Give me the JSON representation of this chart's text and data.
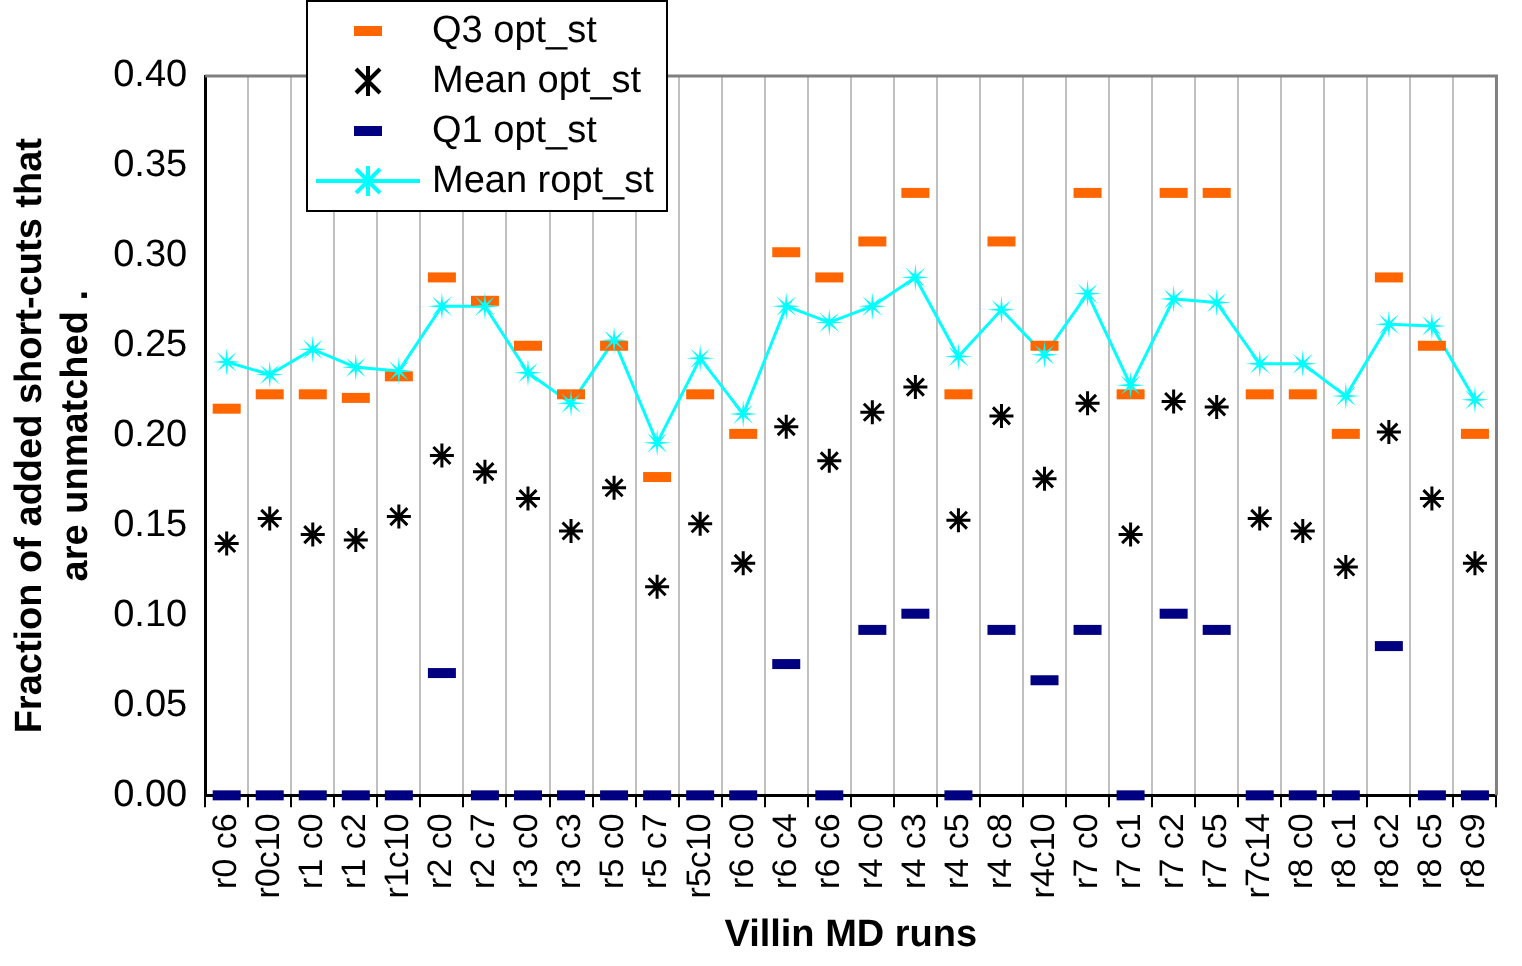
{
  "chart_data": {
    "type": "line",
    "xlabel": "Villin MD runs",
    "ylabel": "Fraction of added short-cuts that\nare unmatched .",
    "categories": [
      "r0 c6",
      "r0c10",
      "r1 c0",
      "r1 c2",
      "r1c10",
      "r2 c0",
      "r2 c7",
      "r3 c0",
      "r3 c3",
      "r5 c0",
      "r5 c7",
      "r5c10",
      "r6 c0",
      "r6 c4",
      "r6 c6",
      "r4 c0",
      "r4 c3",
      "r4 c5",
      "r4 c8",
      "r4c10",
      "r7 c0",
      "r7 c1",
      "r7 c2",
      "r7 c5",
      "r7c14",
      "r8 c0",
      "r8 c1",
      "r8 c2",
      "r8 c5",
      "r8 c9"
    ],
    "series": [
      {
        "name": "Q3 opt_st",
        "type": "scatter",
        "marker": "square",
        "color": "#ff6600",
        "values": [
          0.215,
          0.223,
          0.223,
          0.221,
          0.233,
          0.288,
          0.275,
          0.25,
          0.223,
          0.25,
          0.177,
          0.223,
          0.201,
          0.302,
          0.288,
          0.308,
          0.335,
          0.223,
          0.308,
          0.25,
          0.335,
          0.223,
          0.335,
          0.335,
          0.223,
          0.223,
          0.201,
          0.288,
          0.25,
          0.201
        ]
      },
      {
        "name": "Mean opt_st",
        "type": "scatter",
        "marker": "cross",
        "color": "#000000",
        "values": [
          0.14,
          0.154,
          0.145,
          0.142,
          0.155,
          0.189,
          0.18,
          0.165,
          0.147,
          0.171,
          0.116,
          0.151,
          0.129,
          0.205,
          0.186,
          0.213,
          0.227,
          0.153,
          0.211,
          0.176,
          0.218,
          0.145,
          0.219,
          0.216,
          0.154,
          0.147,
          0.127,
          0.202,
          0.165,
          0.129
        ]
      },
      {
        "name": "Q1 opt_st",
        "type": "scatter",
        "marker": "square",
        "color": "#000080",
        "values": [
          0,
          0,
          0,
          0,
          0,
          0.068,
          0,
          0,
          0,
          0,
          0,
          0,
          0,
          0.073,
          0,
          0.092,
          0.101,
          0,
          0.092,
          0.064,
          0.092,
          0,
          0.101,
          0.092,
          0,
          0,
          0,
          0.083,
          0,
          0
        ]
      },
      {
        "name": "Mean ropt_st",
        "type": "line",
        "marker": "star",
        "line_style": "solid",
        "color": "#00ffff",
        "values": [
          0.241,
          0.234,
          0.248,
          0.238,
          0.236,
          0.272,
          0.272,
          0.235,
          0.218,
          0.253,
          0.196,
          0.243,
          0.212,
          0.272,
          0.263,
          0.272,
          0.288,
          0.244,
          0.27,
          0.245,
          0.279,
          0.228,
          0.276,
          0.274,
          0.24,
          0.24,
          0.222,
          0.262,
          0.261,
          0.22
        ]
      }
    ],
    "ylim": [
      0,
      0.4
    ],
    "yticks": [
      {
        "value": 0,
        "label": "0.00"
      },
      {
        "value": 0.05,
        "label": "0.05"
      },
      {
        "value": 0.1,
        "label": "0.10"
      },
      {
        "value": 0.15,
        "label": "0.15"
      },
      {
        "value": 0.2,
        "label": "0.20"
      },
      {
        "value": 0.25,
        "label": "0.25"
      },
      {
        "value": 0.3,
        "label": "0.30"
      },
      {
        "value": 0.35,
        "label": "0.35"
      },
      {
        "value": 0.4,
        "label": "0.40"
      }
    ],
    "grid": "x",
    "legend": "top left"
  }
}
